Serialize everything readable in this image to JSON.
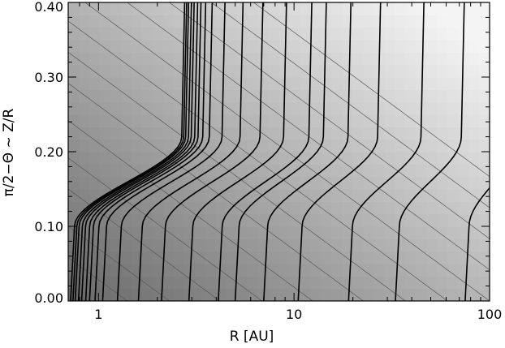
{
  "chart_data": {
    "type": "heatmap",
    "xlabel": "R [AU]",
    "ylabel": "π/2−Θ ~ Z/R",
    "x_scale": "log",
    "xlim": [
      0.7,
      100
    ],
    "ylim": [
      0,
      0.4
    ],
    "x_ticks": [
      {
        "value": 1,
        "label": "1"
      },
      {
        "value": 10,
        "label": "10"
      },
      {
        "value": 100,
        "label": "100"
      }
    ],
    "y_ticks": [
      {
        "value": 0.0,
        "label": "0.00"
      },
      {
        "value": 0.1,
        "label": "0.10"
      },
      {
        "value": 0.2,
        "label": "0.20"
      },
      {
        "value": 0.3,
        "label": "0.30"
      },
      {
        "value": 0.4,
        "label": "0.40"
      }
    ],
    "colors": {
      "shade_dark": "#595959",
      "shade_light": "#f4f4f4",
      "contour_thin": "#5a5a5a",
      "contour_thick": "#000000"
    },
    "thick_contour_base_radii": [
      0.72,
      0.74,
      0.76,
      0.79,
      0.82,
      0.86,
      0.9,
      0.96,
      1.05,
      1.25,
      1.6,
      2.1,
      2.9,
      4.1,
      5.0,
      7.0,
      10.5,
      19.0,
      33.0,
      75.0
    ],
    "thin_contour_levels": [
      0.07,
      0.12,
      0.17,
      0.22,
      0.28,
      0.33,
      0.39,
      0.45,
      0.5,
      0.55,
      0.6,
      0.65,
      0.7,
      0.75,
      0.8
    ]
  }
}
